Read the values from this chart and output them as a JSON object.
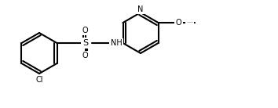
{
  "background_color": "#ffffff",
  "line_color": "#000000",
  "line_width": 1.5,
  "font_size": 7,
  "atoms": {
    "Cl_label": "Cl",
    "S_label": "S",
    "O1_label": "O",
    "O2_label": "O",
    "NH_label": "NH",
    "N_label": "N",
    "O3_label": "O",
    "CH3_label": "— —"
  }
}
